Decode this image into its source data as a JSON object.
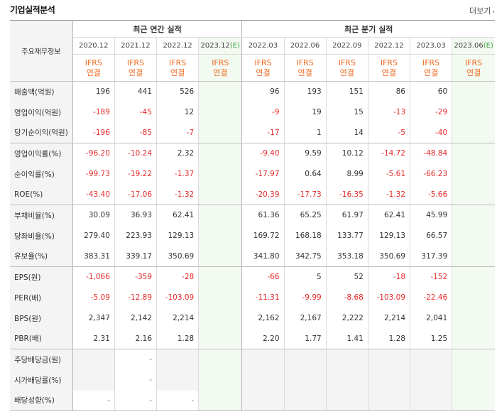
{
  "header": {
    "title": "기업실적분석",
    "more_label": "더보기",
    "more_icon": "chevron-right-icon"
  },
  "table": {
    "row_header_label": "주요재무정보",
    "annual_group_label": "최근 연간 실적",
    "quarterly_group_label": "최근 분기 실적",
    "columns": [
      {
        "period": "2020.12",
        "estimate": false
      },
      {
        "period": "2021.12",
        "estimate": false
      },
      {
        "period": "2022.12",
        "estimate": false
      },
      {
        "period": "2023.12",
        "estimate": true
      },
      {
        "period": "2022.03",
        "estimate": false
      },
      {
        "period": "2022.06",
        "estimate": false
      },
      {
        "period": "2022.09",
        "estimate": false
      },
      {
        "period": "2022.12",
        "estimate": false
      },
      {
        "period": "2023.03",
        "estimate": false
      },
      {
        "period": "2023.06",
        "estimate": true
      }
    ],
    "estimate_suffix": "(E)",
    "account_top": "IFRS",
    "account_bottom": "연결",
    "rows": [
      {
        "label": "매출액(억원)",
        "values": [
          "196",
          "441",
          "526",
          "",
          "96",
          "193",
          "151",
          "86",
          "60",
          ""
        ]
      },
      {
        "label": "영업이익(억원)",
        "values": [
          "-189",
          "-45",
          "12",
          "",
          "-9",
          "19",
          "15",
          "-13",
          "-29",
          ""
        ]
      },
      {
        "label": "당기순이익(억원)",
        "values": [
          "-196",
          "-85",
          "-7",
          "",
          "-17",
          "1",
          "14",
          "-5",
          "-40",
          ""
        ]
      },
      {
        "label": "영업이익률(%)",
        "values": [
          "-96.20",
          "-10.24",
          "2.32",
          "",
          "-9.40",
          "9.59",
          "10.12",
          "-14.72",
          "-48.84",
          ""
        ]
      },
      {
        "label": "순이익률(%)",
        "values": [
          "-99.73",
          "-19.22",
          "-1.37",
          "",
          "-17.97",
          "0.64",
          "8.99",
          "-5.61",
          "-66.23",
          ""
        ]
      },
      {
        "label": "ROE(%)",
        "values": [
          "-43.40",
          "-17.06",
          "-1.32",
          "",
          "-20.39",
          "-17.73",
          "-16.35",
          "-1.32",
          "-5.66",
          ""
        ]
      },
      {
        "label": "부채비율(%)",
        "values": [
          "30.09",
          "36.93",
          "62.41",
          "",
          "61.36",
          "65.25",
          "61.97",
          "62.41",
          "45.99",
          ""
        ]
      },
      {
        "label": "당좌비율(%)",
        "values": [
          "279.40",
          "223.93",
          "129.13",
          "",
          "169.72",
          "168.18",
          "133.77",
          "129.13",
          "66.57",
          ""
        ]
      },
      {
        "label": "유보율(%)",
        "values": [
          "383.31",
          "339.17",
          "350.69",
          "",
          "341.80",
          "342.75",
          "353.18",
          "350.69",
          "317.39",
          ""
        ]
      },
      {
        "label": "EPS(원)",
        "values": [
          "-1,066",
          "-359",
          "-28",
          "",
          "-66",
          "5",
          "52",
          "-18",
          "-152",
          ""
        ]
      },
      {
        "label": "PER(배)",
        "values": [
          "-5.09",
          "-12.89",
          "-103.09",
          "",
          "-11.31",
          "-9.99",
          "-8.68",
          "-103.09",
          "-22.46",
          ""
        ]
      },
      {
        "label": "BPS(원)",
        "values": [
          "2,347",
          "2,142",
          "2,214",
          "",
          "2,162",
          "2,167",
          "2,222",
          "2,214",
          "2,041",
          ""
        ]
      },
      {
        "label": "PBR(배)",
        "values": [
          "2.31",
          "2.16",
          "1.28",
          "",
          "2.20",
          "1.77",
          "1.41",
          "1.28",
          "1.25",
          ""
        ]
      },
      {
        "label": "주당배당금(원)",
        "values": [
          "",
          "-",
          "",
          "",
          "",
          "",
          "",
          "",
          "",
          ""
        ]
      },
      {
        "label": "시가배당률(%)",
        "values": [
          "",
          "-",
          "",
          "",
          "",
          "",
          "",
          "",
          "",
          ""
        ]
      },
      {
        "label": "배당성향(%)",
        "values": [
          "-",
          "-",
          "-",
          "",
          "",
          "",
          "",
          "",
          "",
          ""
        ]
      }
    ]
  },
  "colors": {
    "negative": "#e62a2a",
    "account": "#ee6a1e",
    "estimate_bg": "#f3faf1",
    "estimate_tag": "#3aa33a"
  }
}
